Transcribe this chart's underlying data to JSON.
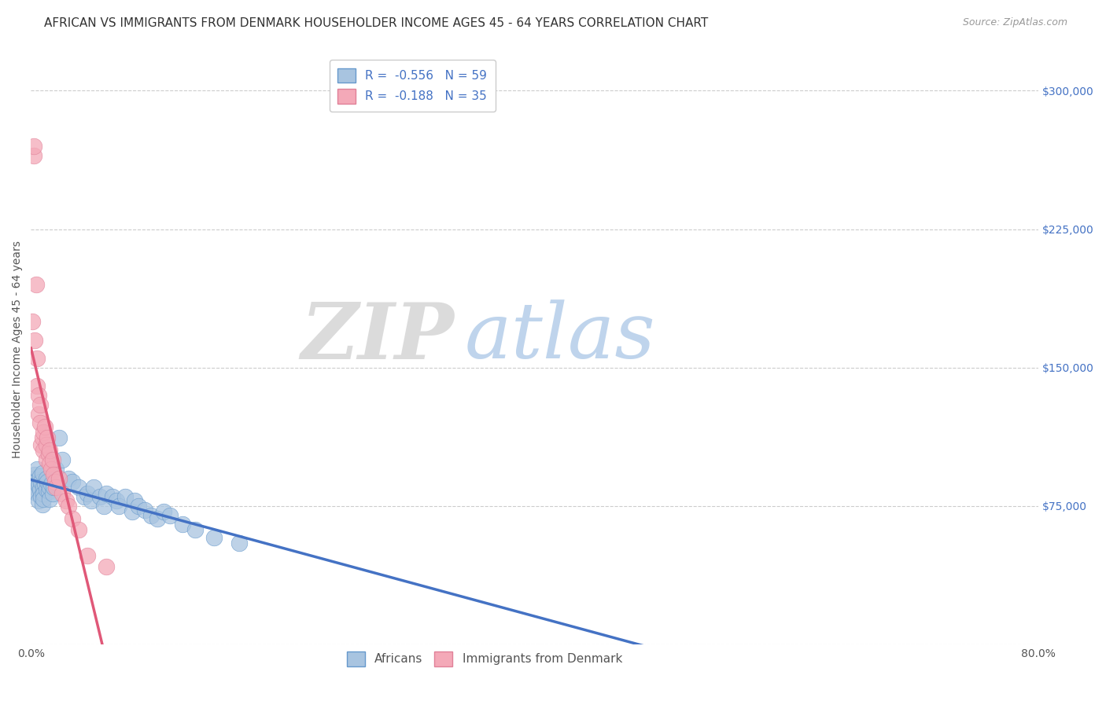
{
  "title": "AFRICAN VS IMMIGRANTS FROM DENMARK HOUSEHOLDER INCOME AGES 45 - 64 YEARS CORRELATION CHART",
  "source": "Source: ZipAtlas.com",
  "ylabel": "Householder Income Ages 45 - 64 years",
  "watermark_zip": "ZIP",
  "watermark_atlas": "atlas",
  "xlim": [
    0.0,
    0.8
  ],
  "ylim": [
    0,
    320000
  ],
  "yticks": [
    0,
    75000,
    150000,
    225000,
    300000
  ],
  "ytick_labels": [
    "",
    "$75,000",
    "$150,000",
    "$225,000",
    "$300,000"
  ],
  "xticks": [
    0.0,
    0.1,
    0.2,
    0.3,
    0.4,
    0.5,
    0.6,
    0.7,
    0.8
  ],
  "background_color": "#ffffff",
  "grid_color": "#cccccc",
  "africans_color": "#a8c4e0",
  "denmark_color": "#f4a9b8",
  "africans_edge_color": "#6699cc",
  "denmark_edge_color": "#e08098",
  "africans_line_color": "#4472c4",
  "denmark_line_color": "#e05878",
  "africans_scatter_x": [
    0.001,
    0.002,
    0.003,
    0.003,
    0.004,
    0.004,
    0.005,
    0.005,
    0.005,
    0.006,
    0.006,
    0.007,
    0.007,
    0.008,
    0.008,
    0.009,
    0.009,
    0.01,
    0.01,
    0.01,
    0.011,
    0.012,
    0.012,
    0.013,
    0.014,
    0.015,
    0.015,
    0.016,
    0.017,
    0.018,
    0.02,
    0.022,
    0.025,
    0.03,
    0.033,
    0.038,
    0.042,
    0.045,
    0.048,
    0.05,
    0.055,
    0.058,
    0.06,
    0.065,
    0.068,
    0.07,
    0.075,
    0.08,
    0.082,
    0.085,
    0.09,
    0.095,
    0.1,
    0.105,
    0.11,
    0.12,
    0.13,
    0.145,
    0.165
  ],
  "africans_scatter_y": [
    88000,
    90000,
    85000,
    92000,
    87000,
    83000,
    89000,
    82000,
    95000,
    86000,
    78000,
    91000,
    84000,
    88000,
    80000,
    93000,
    76000,
    85000,
    82000,
    79000,
    87000,
    84000,
    90000,
    88000,
    83000,
    85000,
    79000,
    87000,
    82000,
    85000,
    95000,
    112000,
    100000,
    90000,
    88000,
    85000,
    80000,
    82000,
    78000,
    85000,
    80000,
    75000,
    82000,
    80000,
    78000,
    75000,
    80000,
    72000,
    78000,
    75000,
    73000,
    70000,
    68000,
    72000,
    70000,
    65000,
    62000,
    58000,
    55000
  ],
  "denmark_scatter_x": [
    0.001,
    0.002,
    0.002,
    0.003,
    0.004,
    0.005,
    0.005,
    0.006,
    0.006,
    0.007,
    0.007,
    0.008,
    0.009,
    0.01,
    0.01,
    0.011,
    0.012,
    0.012,
    0.013,
    0.014,
    0.015,
    0.015,
    0.016,
    0.017,
    0.018,
    0.019,
    0.02,
    0.022,
    0.025,
    0.028,
    0.03,
    0.033,
    0.038,
    0.045,
    0.06
  ],
  "denmark_scatter_y": [
    175000,
    265000,
    270000,
    165000,
    195000,
    140000,
    155000,
    125000,
    135000,
    120000,
    130000,
    108000,
    112000,
    115000,
    105000,
    118000,
    100000,
    108000,
    112000,
    103000,
    98000,
    105000,
    95000,
    100000,
    92000,
    88000,
    85000,
    90000,
    82000,
    78000,
    75000,
    68000,
    62000,
    48000,
    42000
  ],
  "title_fontsize": 11,
  "axis_label_fontsize": 10,
  "tick_fontsize": 10,
  "legend_fontsize": 11
}
